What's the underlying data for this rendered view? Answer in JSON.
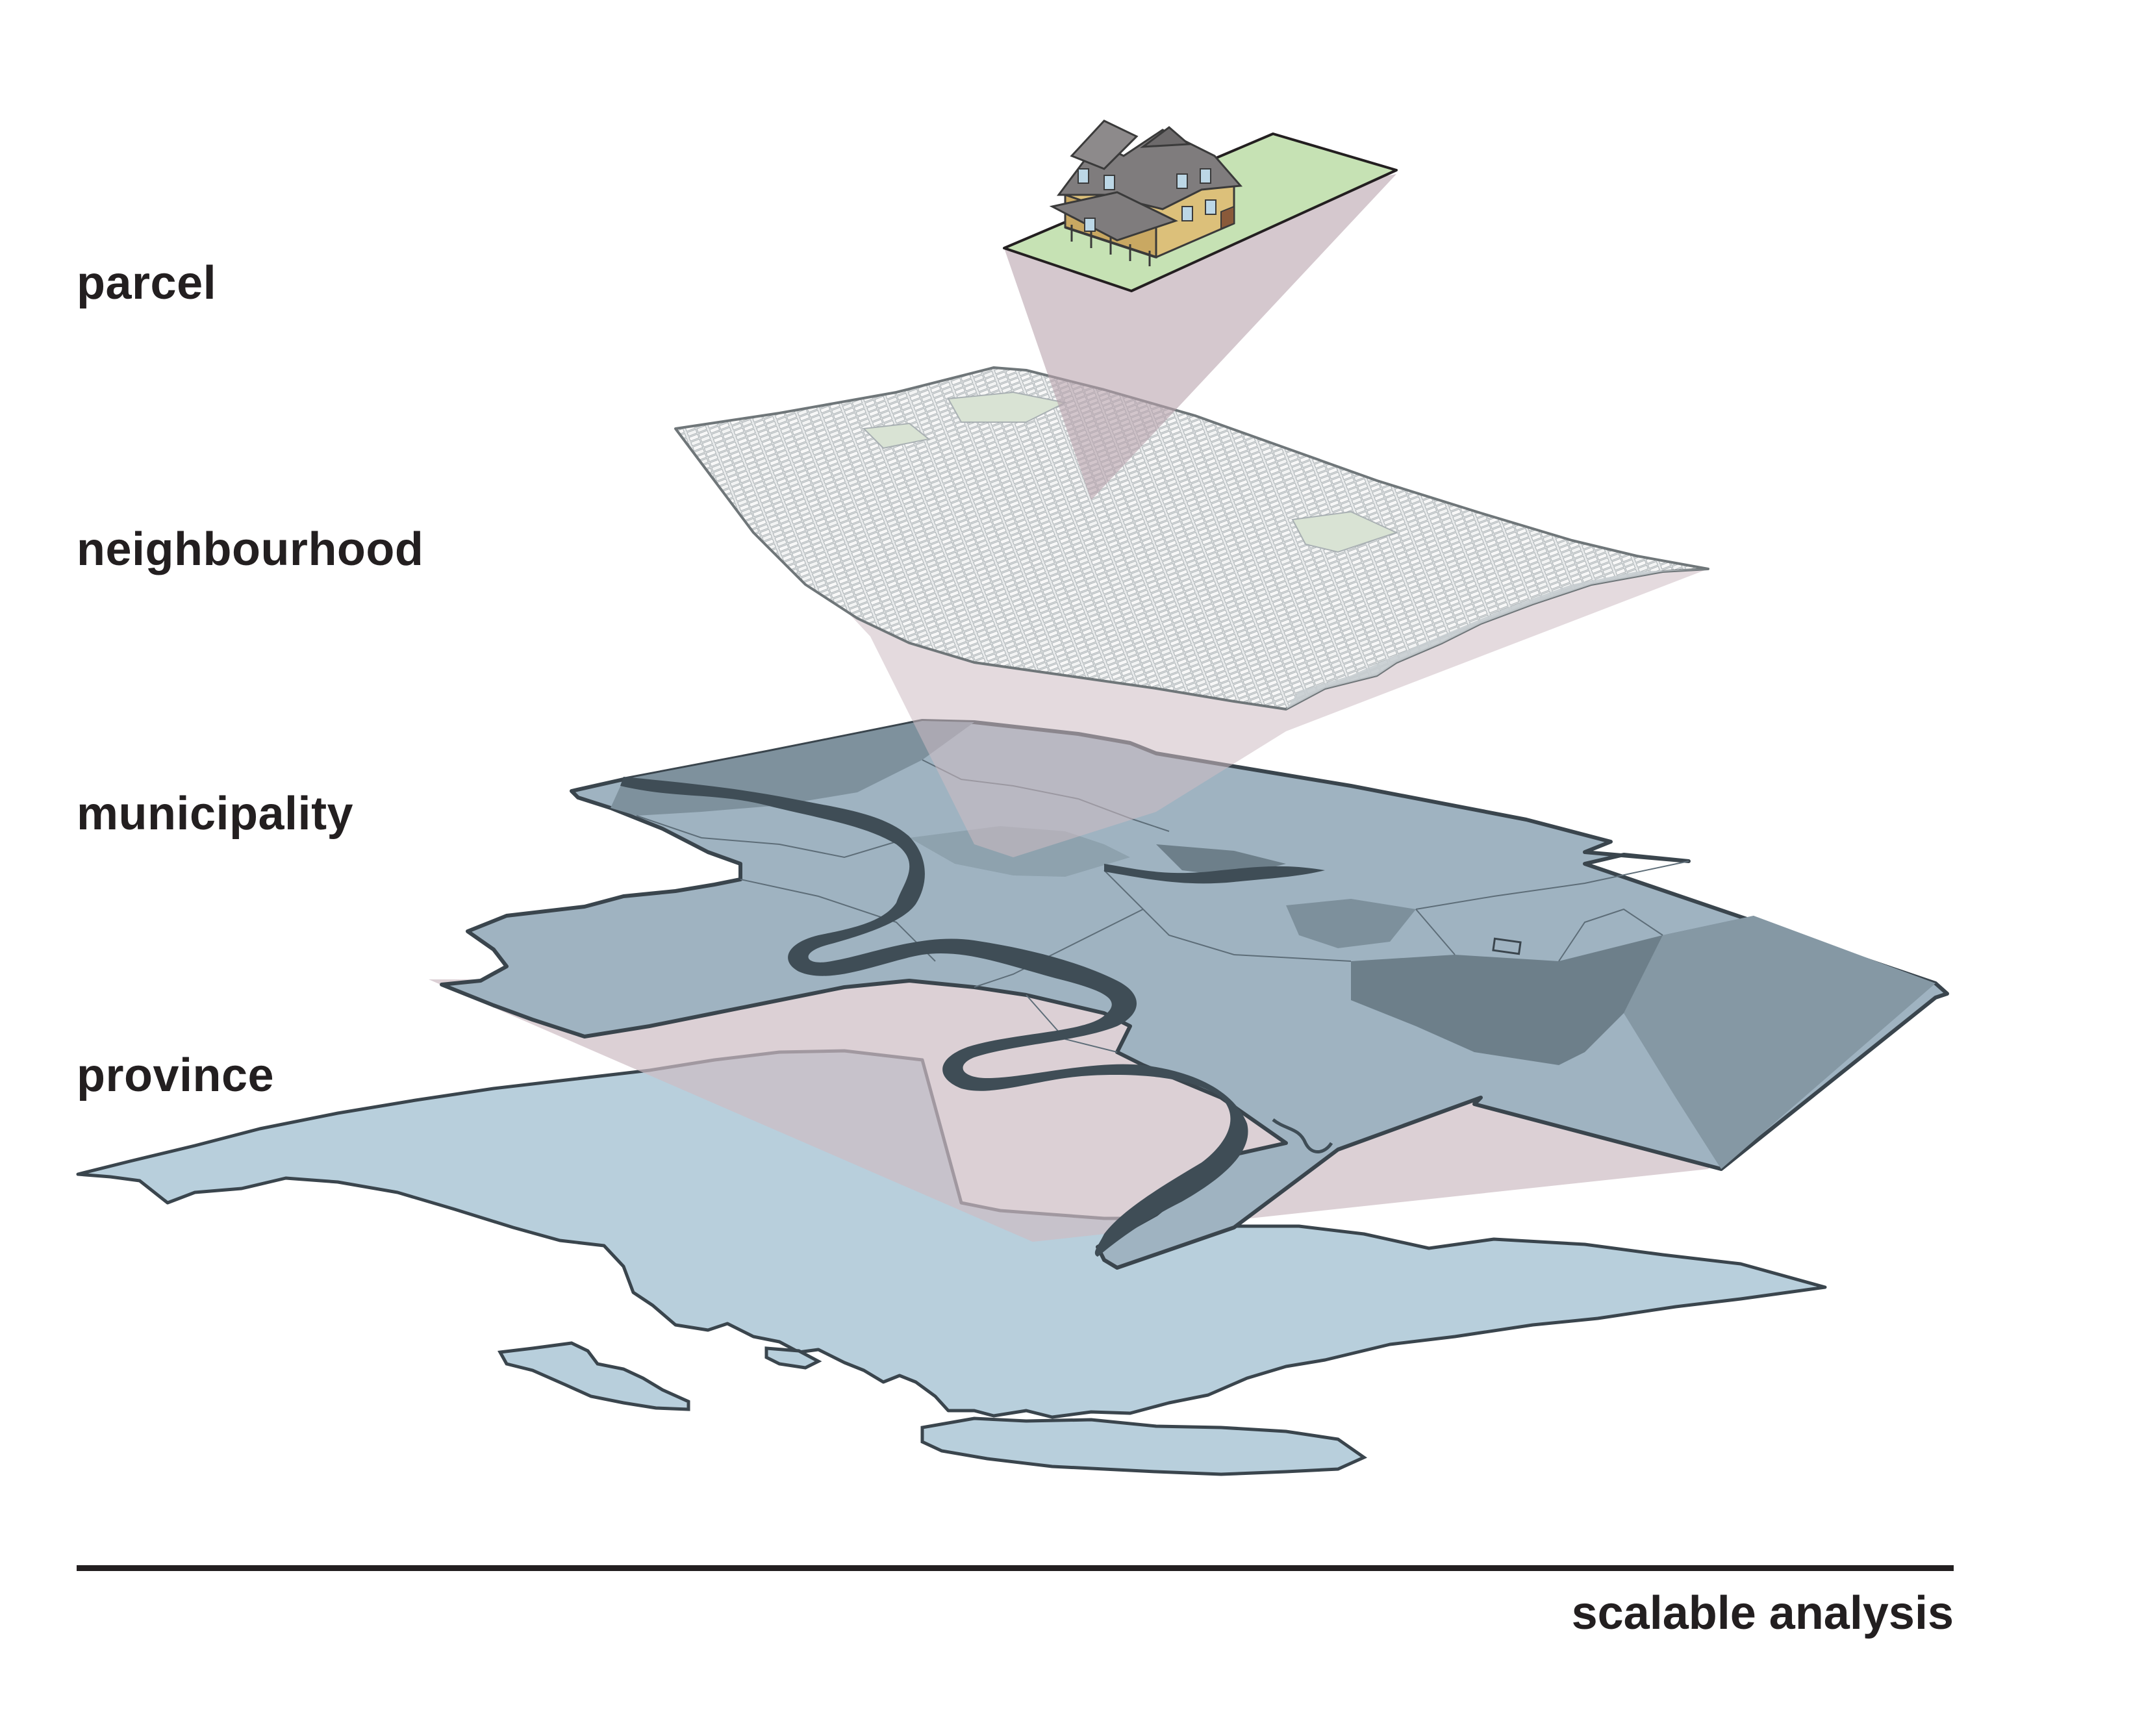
{
  "layers": [
    {
      "id": "parcel",
      "label": "parcel"
    },
    {
      "id": "neighbourhood",
      "label": "neighbourhood"
    },
    {
      "id": "municipality",
      "label": "municipality"
    },
    {
      "id": "province",
      "label": "province"
    }
  ],
  "axis": {
    "caption": "scalable analysis"
  },
  "colors": {
    "projection": "#d8cdd1",
    "province_fill": "#b8cfdc",
    "municipality_fill": "#9fb3c1",
    "municipality_dark": "#6a7c88",
    "river": "#3f4d56",
    "outline": "#3a454d",
    "neighbourhood_fill": "#e6e9ea",
    "neighbourhood_lines": "#9aa2a6",
    "parcel_lot": "#c6e2b4",
    "house_wall": "#dcc07a",
    "house_roof": "#7f7c7d",
    "axis": "#231f20"
  },
  "icons": [
    "house-icon"
  ]
}
